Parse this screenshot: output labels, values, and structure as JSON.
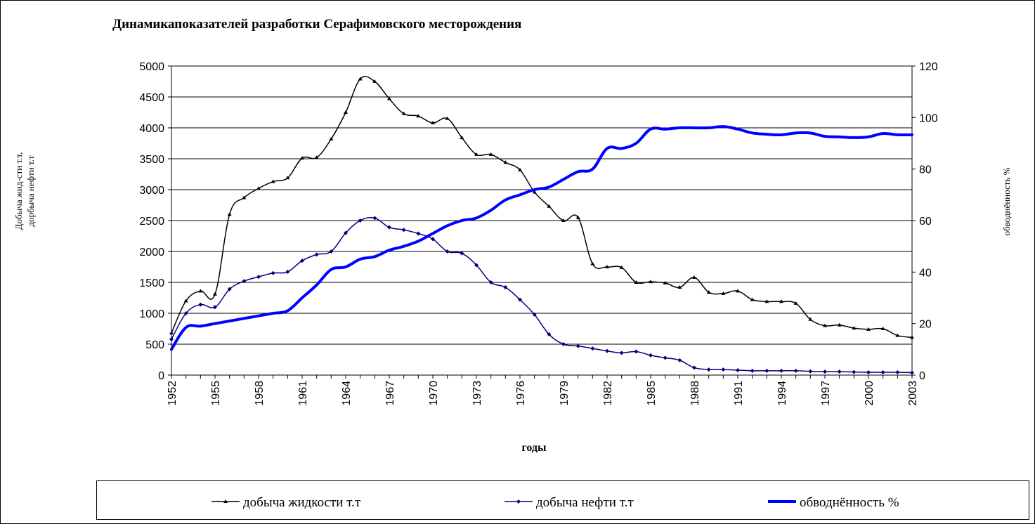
{
  "chart_data": {
    "type": "line",
    "title": "Динамикапоказателей  разработки Серафимовского месторождения",
    "xlabel": "годы",
    "ylabel_left_line1": "Добыча жид-сти т.т,",
    "ylabel_left_line2": "дорбыча нефти т.т",
    "ylabel_right": "обводнённость %",
    "ylim_left": [
      0,
      5000
    ],
    "ylim_right": [
      0,
      120
    ],
    "yticks_left": [
      0,
      500,
      1000,
      1500,
      2000,
      2500,
      3000,
      3500,
      4000,
      4500,
      5000
    ],
    "yticks_right": [
      0,
      20,
      40,
      60,
      80,
      100,
      120
    ],
    "xtick_labels": [
      "1952",
      "1955",
      "1958",
      "1961",
      "1964",
      "1967",
      "1970",
      "1973",
      "1976",
      "1979",
      "1982",
      "1985",
      "1988",
      "1991",
      "1994",
      "1997",
      "2000",
      "2003"
    ],
    "grid": "horizontal",
    "legend_position": "bottom",
    "x": [
      1952,
      1953,
      1954,
      1955,
      1956,
      1957,
      1958,
      1959,
      1960,
      1961,
      1962,
      1963,
      1964,
      1965,
      1966,
      1967,
      1968,
      1969,
      1970,
      1971,
      1972,
      1973,
      1974,
      1975,
      1976,
      1977,
      1978,
      1979,
      1980,
      1981,
      1982,
      1983,
      1984,
      1985,
      1986,
      1987,
      1988,
      1989,
      1990,
      1991,
      1992,
      1993,
      1994,
      1995,
      1996,
      1997,
      1998,
      1999,
      2000,
      2001,
      2002,
      2003
    ],
    "series": [
      {
        "name": "добыча жидкости т.т",
        "axis": "left",
        "color": "#000000",
        "marker": "triangle",
        "values": [
          680,
          1200,
          1360,
          1310,
          2600,
          2870,
          3020,
          3130,
          3190,
          3510,
          3520,
          3820,
          4250,
          4790,
          4750,
          4470,
          4230,
          4190,
          4080,
          4150,
          3840,
          3570,
          3570,
          3440,
          3320,
          2960,
          2730,
          2500,
          2550,
          1800,
          1750,
          1740,
          1500,
          1510,
          1490,
          1420,
          1580,
          1340,
          1320,
          1360,
          1220,
          1190,
          1190,
          1160,
          900,
          800,
          810,
          760,
          740,
          750,
          640,
          610
        ]
      },
      {
        "name": "добыча нефти т.т",
        "axis": "left",
        "color": "#000080",
        "marker": "diamond",
        "values": [
          580,
          1000,
          1140,
          1100,
          1390,
          1520,
          1590,
          1650,
          1670,
          1850,
          1950,
          2000,
          2300,
          2500,
          2540,
          2390,
          2350,
          2290,
          2200,
          2000,
          1970,
          1780,
          1500,
          1420,
          1220,
          980,
          660,
          500,
          470,
          430,
          390,
          360,
          380,
          320,
          280,
          240,
          120,
          90,
          90,
          80,
          70,
          70,
          70,
          70,
          60,
          55,
          55,
          50,
          45,
          45,
          45,
          40
        ]
      },
      {
        "name": "обводнённость %",
        "axis": "right",
        "color": "#0000ff",
        "marker": "none",
        "values": [
          10,
          18.5,
          19,
          20,
          21,
          22,
          23,
          24,
          25,
          30,
          35,
          41,
          42,
          45,
          46,
          48.5,
          50,
          52,
          55,
          58,
          60,
          61,
          64,
          68,
          70,
          72,
          73,
          76,
          79,
          80,
          88,
          88,
          90,
          95.5,
          95.5,
          96,
          96,
          96,
          96.5,
          95.5,
          94,
          93.5,
          93.3,
          94,
          94,
          92.7,
          92.5,
          92.2,
          92.5,
          93.8,
          93.3,
          93.3
        ]
      }
    ]
  }
}
